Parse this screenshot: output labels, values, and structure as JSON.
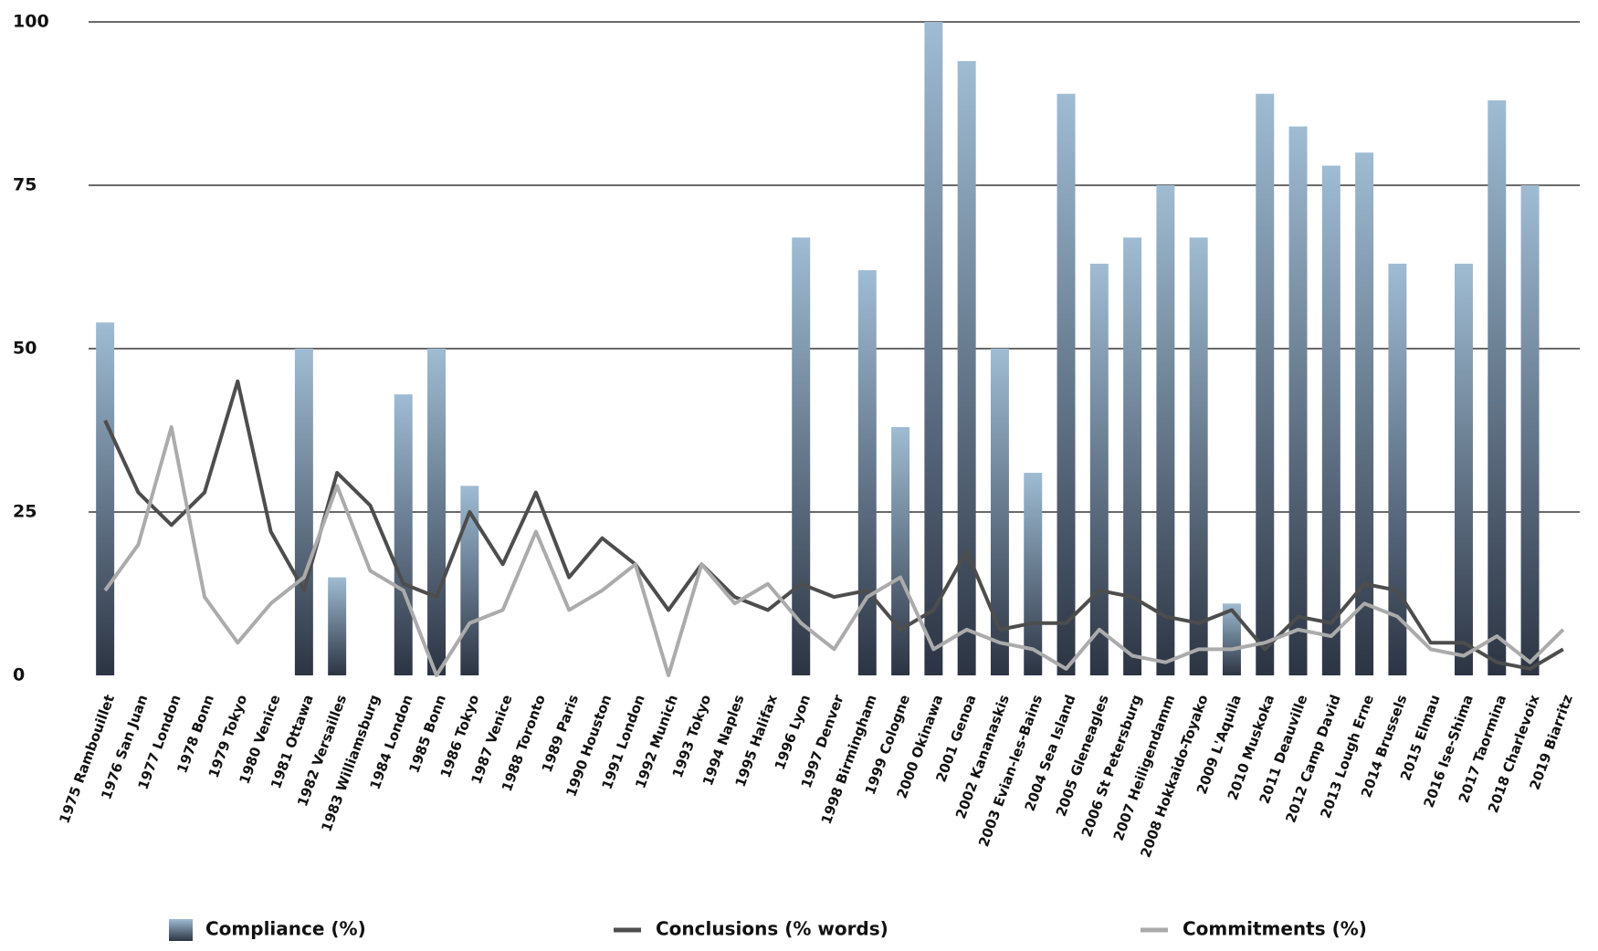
{
  "chart_data": {
    "type": "bar_line",
    "categories": [
      "1975 Rambouillet",
      "1976 San Juan",
      "1977 London",
      "1978 Bonn",
      "1979 Tokyo",
      "1980 Venice",
      "1981 Ottawa",
      "1982 Versailles",
      "1983 Williamsburg",
      "1984 London",
      "1985 Bonn",
      "1986 Tokyo",
      "1987 Venice",
      "1988 Toronto",
      "1989 Paris",
      "1990 Houston",
      "1991 London",
      "1992 Munich",
      "1993 Tokyo",
      "1994 Naples",
      "1995 Halifax",
      "1996 Lyon",
      "1997 Denver",
      "1998 Birmingham",
      "1999 Cologne",
      "2000 Okinawa",
      "2001 Genoa",
      "2002 Kananaskis",
      "2003 Evian-les-Bains",
      "2004 Sea Island",
      "2005 Gleneagles",
      "2006 St Petersburg",
      "2007 Heiligendamm",
      "2008 Hokkaido-Toyako",
      "2009 L'Aquila",
      "2010 Muskoka",
      "2011 Deauville",
      "2012 Camp David",
      "2013 Lough Erne",
      "2014 Brussels",
      "2015 Elmau",
      "2016 Ise-Shima",
      "2017 Taormina",
      "2018 Charlevoix",
      "2019 Biarritz"
    ],
    "series": [
      {
        "name": "Compliance (%)",
        "type": "bar",
        "color": "#9fbcd3",
        "color_bottom": "#2c3443",
        "values": [
          54,
          null,
          null,
          null,
          null,
          null,
          50,
          15,
          null,
          43,
          50,
          29,
          null,
          null,
          null,
          null,
          null,
          null,
          null,
          null,
          null,
          67,
          null,
          62,
          38,
          100,
          94,
          50,
          31,
          89,
          63,
          67,
          75,
          67,
          11,
          89,
          84,
          78,
          80,
          63,
          null,
          63,
          88,
          75,
          null
        ]
      },
      {
        "name": "Conclusions (% words)",
        "type": "line",
        "color": "#4d4d4d",
        "values": [
          39,
          28,
          23,
          28,
          45,
          22,
          13,
          31,
          26,
          14,
          12,
          25,
          17,
          28,
          15,
          21,
          17,
          10,
          17,
          12,
          10,
          14,
          12,
          13,
          7,
          10,
          19,
          7,
          8,
          8,
          13,
          12,
          9,
          8,
          10,
          4,
          9,
          8,
          14,
          13,
          5,
          5,
          2,
          1,
          4
        ]
      },
      {
        "name": "Commitments (%)",
        "type": "line",
        "color": "#ababab",
        "values": [
          13,
          20,
          38,
          12,
          5,
          11,
          15,
          29,
          16,
          13,
          0,
          8,
          10,
          22,
          10,
          13,
          17,
          0,
          17,
          11,
          14,
          8,
          4,
          12,
          15,
          4,
          7,
          5,
          4,
          1,
          7,
          3,
          2,
          4,
          4,
          5,
          7,
          6,
          11,
          9,
          4,
          3,
          6,
          2,
          7
        ]
      }
    ],
    "ylim": [
      0,
      100
    ],
    "yticks": [
      0,
      25,
      50,
      75,
      100
    ],
    "grid": true
  }
}
